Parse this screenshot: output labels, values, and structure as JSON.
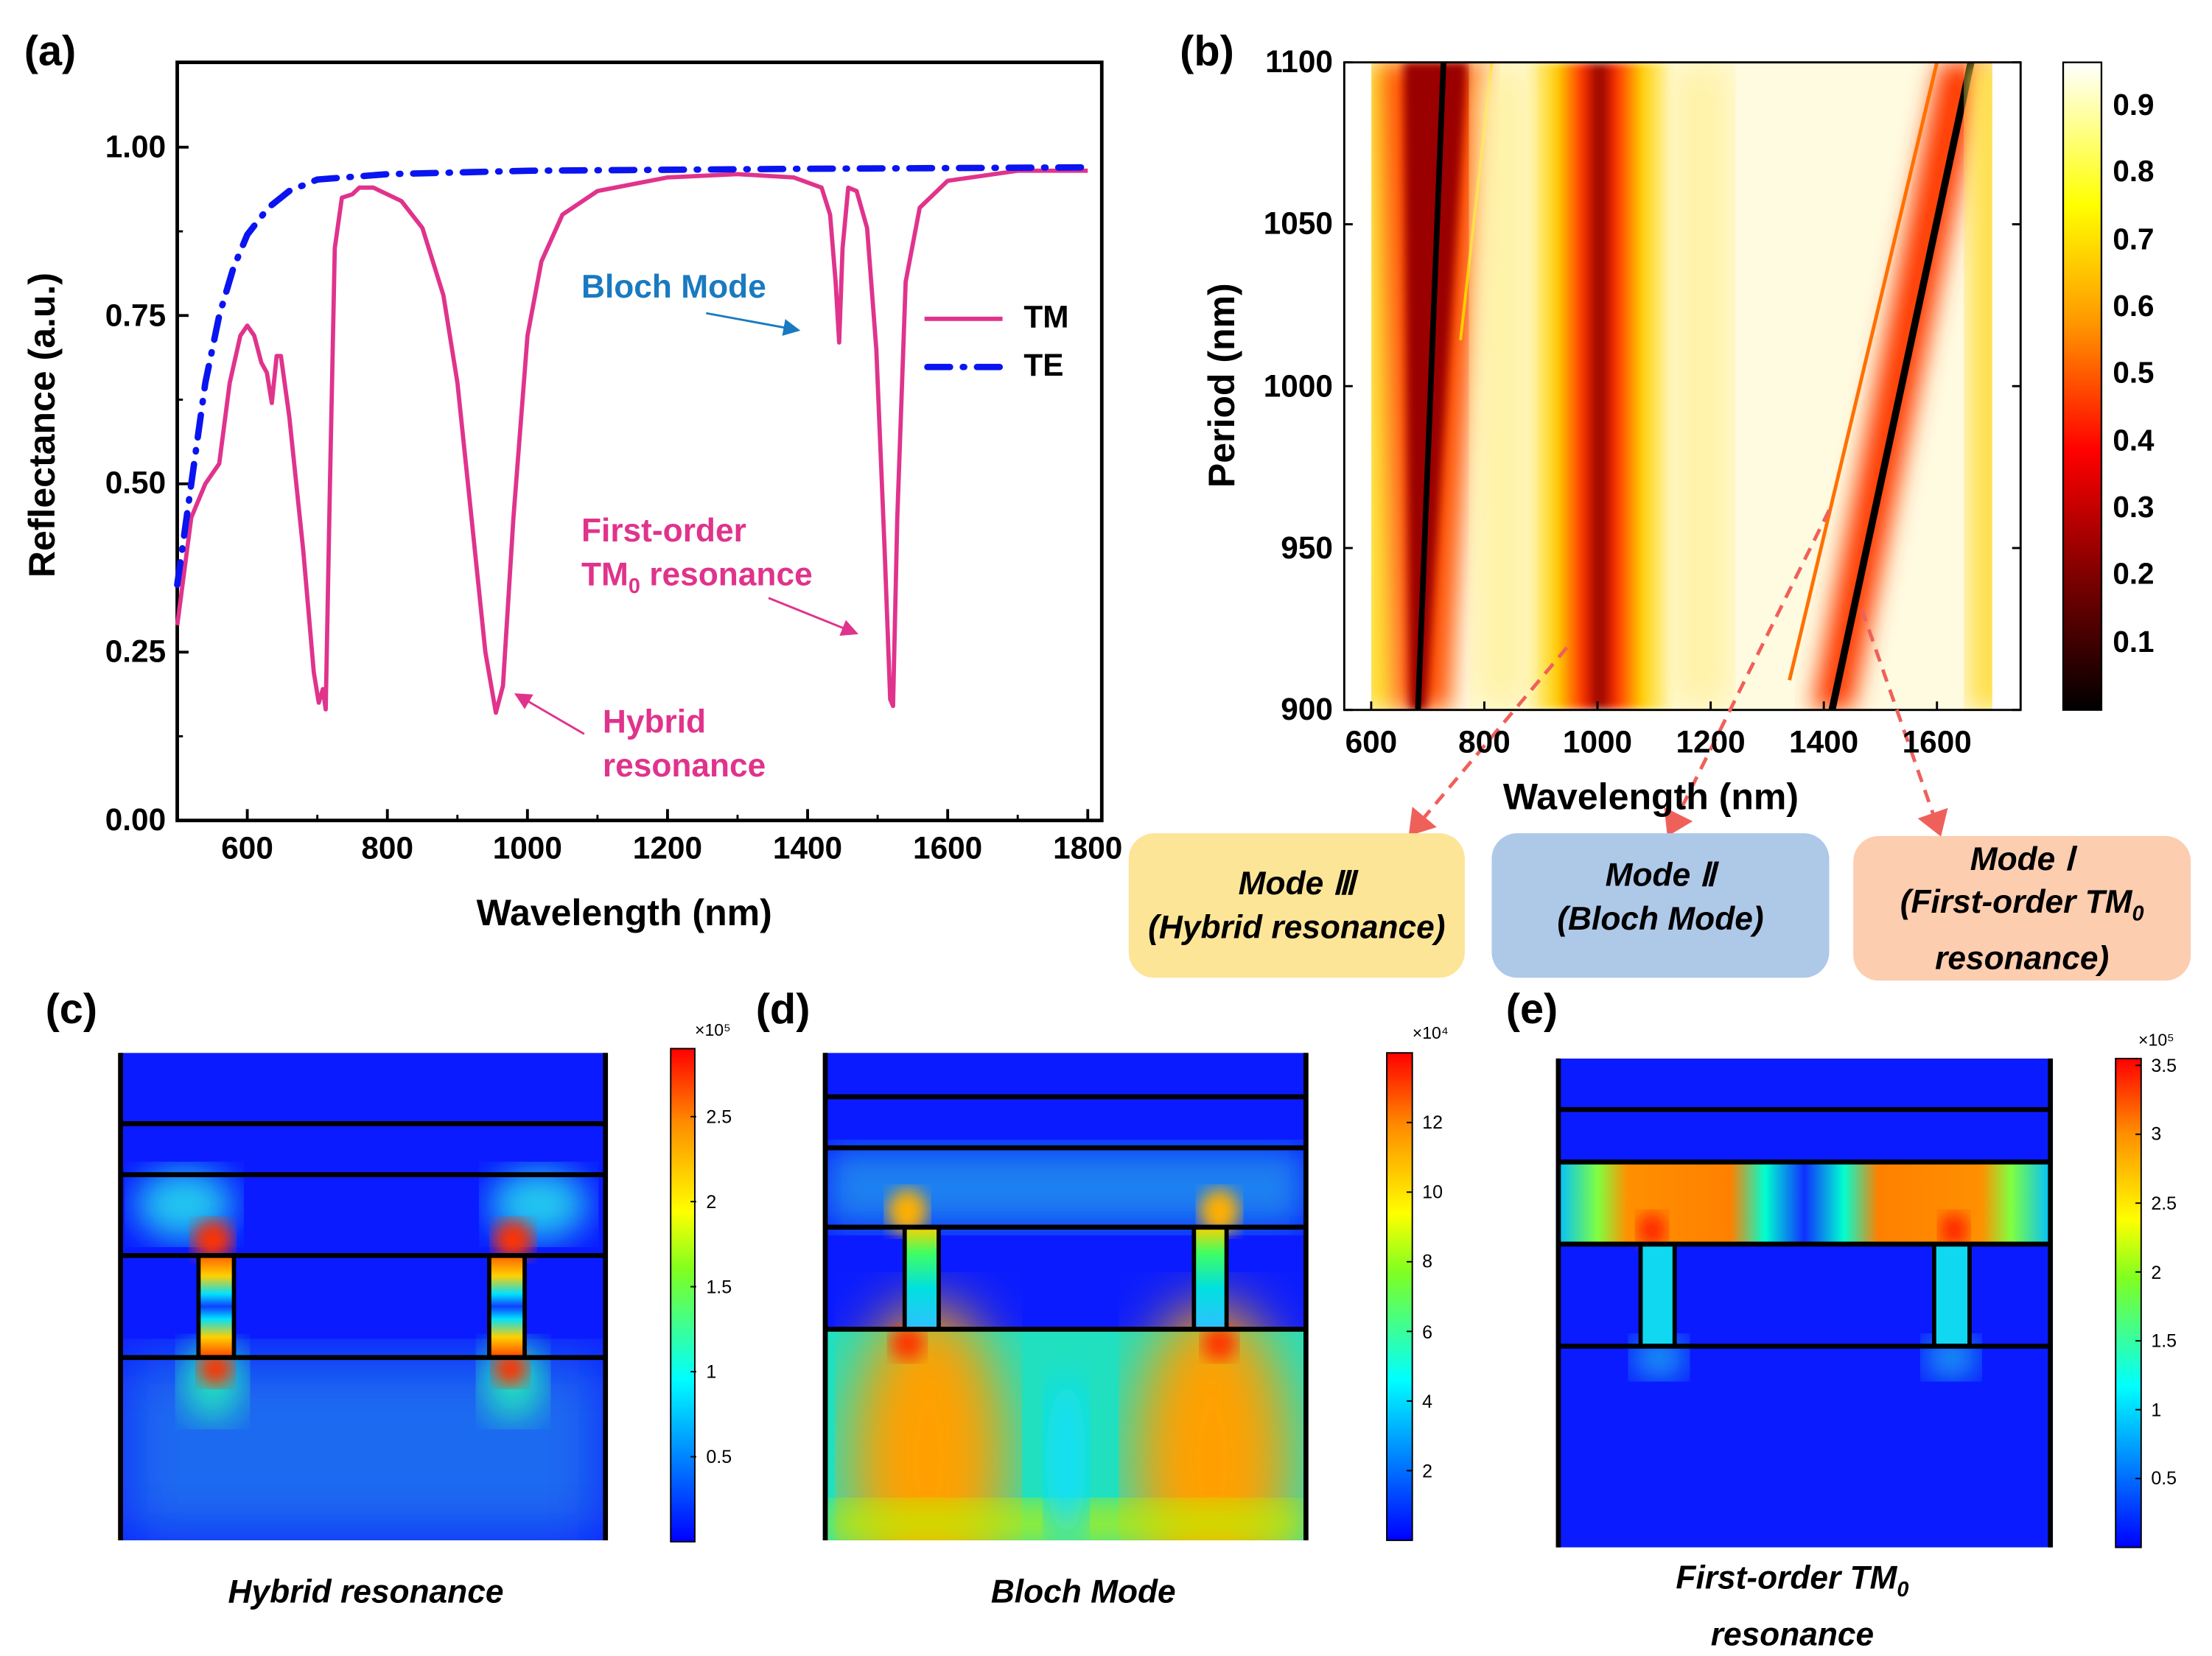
{
  "panels": {
    "a": {
      "label": "(a)"
    },
    "b": {
      "label": "(b)"
    },
    "c": {
      "label": "(c)",
      "caption": "Hybrid resonance",
      "colorbar": {
        "exponent": "×10⁵",
        "ticks": [
          "0.5",
          "1",
          "1.5",
          "2",
          "2.5"
        ],
        "tick_values": [
          0.5,
          1,
          1.5,
          2,
          2.5
        ],
        "range": [
          0,
          2.9
        ]
      }
    },
    "d": {
      "label": "(d)",
      "caption": "Bloch Mode",
      "colorbar": {
        "exponent": "×10⁴",
        "ticks": [
          "2",
          "4",
          "6",
          "8",
          "10",
          "12"
        ],
        "tick_values": [
          2,
          4,
          6,
          8,
          10,
          12
        ],
        "range": [
          0,
          14
        ]
      }
    },
    "e": {
      "label": "(e)",
      "caption_line1": "First-order TM",
      "caption_sub": "0",
      "caption_line2": "resonance",
      "colorbar": {
        "exponent": "×10⁵",
        "ticks": [
          "0.5",
          "1",
          "1.5",
          "2",
          "2.5",
          "3",
          "3.5"
        ],
        "tick_values": [
          0.5,
          1,
          1.5,
          2,
          2.5,
          3,
          3.5
        ],
        "range": [
          0,
          3.55
        ]
      }
    }
  },
  "mode_boxes": [
    {
      "title": "Mode Ⅲ",
      "line2": "(Hybrid resonance)",
      "color": "#fde597"
    },
    {
      "title": "Mode Ⅱ",
      "line2": "(Bloch Mode)",
      "color": "#aec8e8"
    },
    {
      "title": "Mode Ⅰ",
      "line2": "(First-order TM",
      "sub": "0",
      "line3": "resonance)",
      "color": "#fdcdb0"
    }
  ],
  "chart_data": [
    {
      "type": "line",
      "xlabel": "Wavelength (nm)",
      "ylabel": "Reflectance (a.u.)",
      "xlim": [
        500,
        1820
      ],
      "ylim": [
        0,
        1.126
      ],
      "xticks": [
        "600",
        "800",
        "1000",
        "1200",
        "1400",
        "1600",
        "1800"
      ],
      "xtick_values": [
        600,
        800,
        1000,
        1200,
        1400,
        1600,
        1800
      ],
      "yticks": [
        "0.00",
        "0.25",
        "0.50",
        "0.75",
        "1.00"
      ],
      "ytick_values": [
        0,
        0.25,
        0.5,
        0.75,
        1.0
      ],
      "legend": {
        "position": "right",
        "entries": [
          "TM",
          "TE"
        ]
      },
      "series": [
        {
          "name": "TM",
          "color": "#e0338c",
          "style": "solid",
          "x": [
            500,
            520,
            540,
            560,
            575,
            590,
            600,
            610,
            620,
            628,
            635,
            642,
            648,
            660,
            680,
            695,
            702,
            708,
            712,
            718,
            725,
            735,
            750,
            760,
            780,
            820,
            850,
            880,
            900,
            920,
            940,
            955,
            965,
            980,
            1000,
            1020,
            1050,
            1100,
            1200,
            1300,
            1380,
            1420,
            1432,
            1440,
            1445,
            1450,
            1458,
            1470,
            1485,
            1498,
            1510,
            1518,
            1522,
            1528,
            1540,
            1560,
            1600,
            1700,
            1800
          ],
          "y": [
            0.29,
            0.45,
            0.5,
            0.53,
            0.65,
            0.72,
            0.735,
            0.72,
            0.68,
            0.665,
            0.62,
            0.69,
            0.69,
            0.6,
            0.4,
            0.22,
            0.175,
            0.195,
            0.165,
            0.5,
            0.85,
            0.925,
            0.93,
            0.94,
            0.94,
            0.92,
            0.88,
            0.78,
            0.65,
            0.45,
            0.25,
            0.16,
            0.2,
            0.45,
            0.72,
            0.83,
            0.9,
            0.935,
            0.955,
            0.96,
            0.955,
            0.94,
            0.9,
            0.8,
            0.71,
            0.85,
            0.94,
            0.935,
            0.88,
            0.7,
            0.4,
            0.18,
            0.17,
            0.45,
            0.8,
            0.91,
            0.95,
            0.965,
            0.965
          ]
        },
        {
          "name": "TE",
          "color": "#0a14f0",
          "style": "dash-dot",
          "x": [
            500,
            520,
            540,
            560,
            580,
            600,
            630,
            660,
            700,
            800,
            1000,
            1400,
            1800
          ],
          "y": [
            0.35,
            0.5,
            0.65,
            0.75,
            0.82,
            0.87,
            0.91,
            0.935,
            0.952,
            0.96,
            0.965,
            0.968,
            0.97
          ]
        }
      ],
      "annotations": [
        {
          "text": "Bloch Mode",
          "color": "#1a7ac0",
          "points_to_x": 1445
        },
        {
          "text": "First-order",
          "text2": "TM",
          "sub": "0",
          "text3": " resonance",
          "color": "#e0338c",
          "points_to_x": 1520
        },
        {
          "text": "Hybrid",
          "text2": "resonance",
          "color": "#e0338c",
          "points_to_x": 960
        }
      ]
    },
    {
      "type": "heatmap",
      "xlabel": "Wavelength (nm)",
      "ylabel": "Period (nm)",
      "xlim": [
        600,
        1700
      ],
      "ylim": [
        900,
        1100
      ],
      "xticks": [
        "600",
        "800",
        "1000",
        "1200",
        "1400",
        "1600"
      ],
      "xtick_values": [
        600,
        800,
        1000,
        1200,
        1400,
        1600
      ],
      "yticks": [
        "900",
        "950",
        "1000",
        "1050",
        "1100"
      ],
      "ytick_values": [
        900,
        950,
        1000,
        1050,
        1100
      ],
      "colorbar": {
        "ticks": [
          "0.1",
          "0.2",
          "0.3",
          "0.4",
          "0.5",
          "0.6",
          "0.7",
          "0.8",
          "0.9"
        ],
        "tick_values": [
          0.1,
          0.2,
          0.3,
          0.4,
          0.5,
          0.6,
          0.7,
          0.8,
          0.9
        ],
        "range": [
          0,
          0.965
        ]
      },
      "features": [
        {
          "name": "Mode Ⅲ",
          "wavelength_at_900": 680,
          "wavelength_at_1100": 720
        },
        {
          "name": "Mode Ⅱ",
          "wavelength_at_900": 1010,
          "wavelength_at_1100": 1000
        },
        {
          "name": "Mode Ⅰ",
          "wavelength_at_900": 1410,
          "wavelength_at_1100": 1655
        }
      ]
    }
  ]
}
